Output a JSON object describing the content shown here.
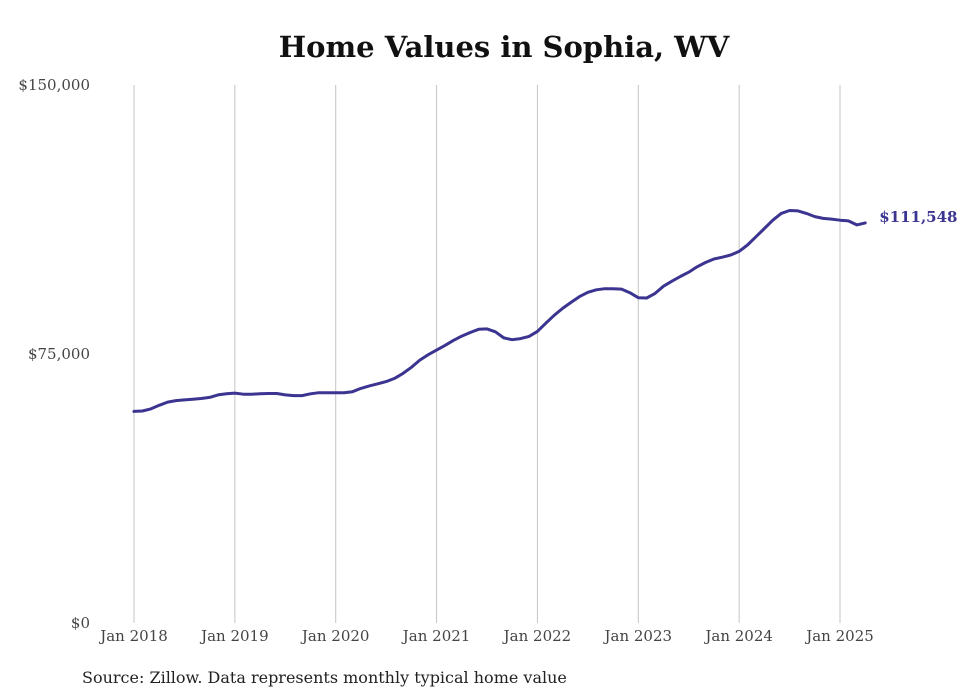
{
  "chart_data": {
    "type": "line",
    "title": "Home Values in Sophia, WV",
    "source": "Source: Zillow. Data represents monthly typical home value",
    "xlabel": "",
    "ylabel": "",
    "ylim": [
      0,
      150000
    ],
    "y_ticks": [
      0,
      75000,
      150000
    ],
    "y_tick_labels": [
      "$0",
      "$75,000",
      "$150,000"
    ],
    "x_ticks": [
      "2018-01",
      "2019-01",
      "2020-01",
      "2021-01",
      "2022-01",
      "2023-01",
      "2024-01",
      "2025-01"
    ],
    "x_tick_labels": [
      "Jan 2018",
      "Jan 2019",
      "Jan 2020",
      "Jan 2021",
      "Jan 2022",
      "Jan 2023",
      "Jan 2024",
      "Jan 2025"
    ],
    "grid": "vertical",
    "line_color": "#3b3490",
    "end_label": "$111,548",
    "series": [
      {
        "x": [
          "2018-01",
          "2018-02",
          "2018-03",
          "2018-04",
          "2018-05",
          "2018-06",
          "2018-07",
          "2018-08",
          "2018-09",
          "2018-10",
          "2018-11",
          "2018-12",
          "2019-01",
          "2019-02",
          "2019-03",
          "2019-04",
          "2019-05",
          "2019-06",
          "2019-07",
          "2019-08",
          "2019-09",
          "2019-10",
          "2019-11",
          "2019-12",
          "2020-01",
          "2020-02",
          "2020-03",
          "2020-04",
          "2020-05",
          "2020-06",
          "2020-07",
          "2020-08",
          "2020-09",
          "2020-10",
          "2020-11",
          "2020-12",
          "2021-01",
          "2021-02",
          "2021-03",
          "2021-04",
          "2021-05",
          "2021-06",
          "2021-07",
          "2021-08",
          "2021-09",
          "2021-10",
          "2021-11",
          "2021-12",
          "2022-01",
          "2022-02",
          "2022-03",
          "2022-04",
          "2022-05",
          "2022-06",
          "2022-07",
          "2022-08",
          "2022-09",
          "2022-10",
          "2022-11",
          "2022-12",
          "2023-01",
          "2023-02",
          "2023-03",
          "2023-04",
          "2023-05",
          "2023-06",
          "2023-07",
          "2023-08",
          "2023-09",
          "2023-10",
          "2023-11",
          "2023-12",
          "2024-01",
          "2024-02",
          "2024-03",
          "2024-04",
          "2024-05",
          "2024-06",
          "2024-07",
          "2024-08",
          "2024-09",
          "2024-10",
          "2024-11",
          "2024-12",
          "2025-01",
          "2025-02",
          "2025-03",
          "2025-04"
        ],
        "values": [
          59000,
          59100,
          59700,
          60700,
          61600,
          62000,
          62200,
          62400,
          62600,
          62900,
          63600,
          63900,
          64100,
          63800,
          63800,
          63900,
          64000,
          64000,
          63600,
          63400,
          63400,
          63900,
          64200,
          64200,
          64200,
          64200,
          64500,
          65400,
          66100,
          66700,
          67300,
          68200,
          69600,
          71300,
          73300,
          74800,
          76100,
          77400,
          78800,
          80000,
          81000,
          81900,
          82000,
          81200,
          79500,
          79000,
          79300,
          79900,
          81300,
          83600,
          85800,
          87700,
          89400,
          91000,
          92200,
          92900,
          93200,
          93200,
          93100,
          92100,
          90700,
          90600,
          91900,
          93900,
          95300,
          96600,
          97800,
          99300,
          100500,
          101500,
          102000,
          102600,
          103600,
          105400,
          107700,
          110000,
          112300,
          114200,
          115000,
          114900,
          114200,
          113300,
          112800,
          112600,
          112300,
          112100,
          111000,
          111548
        ]
      }
    ]
  }
}
